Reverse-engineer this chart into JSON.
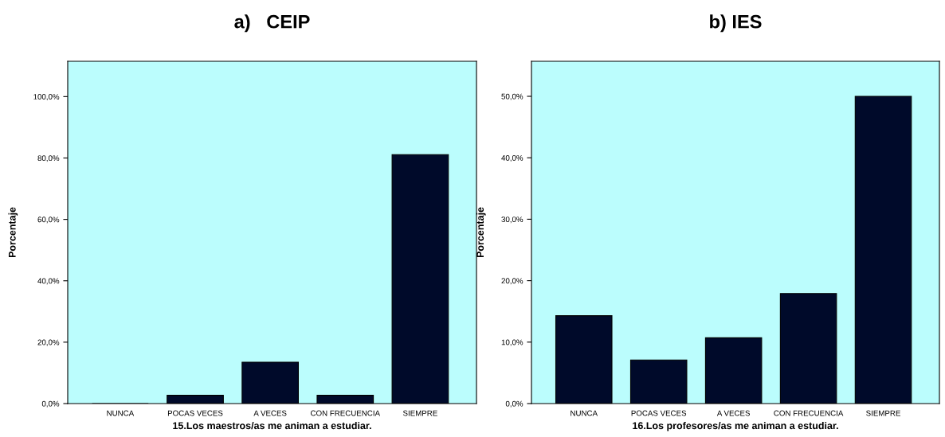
{
  "chart_data": [
    {
      "type": "bar",
      "title": "a)   CEIP",
      "xlabel": "15.Los maestros/as me animan a estudiar.",
      "ylabel": "Porcentaje",
      "categories": [
        "NUNCA",
        "POCAS VECES",
        "A VECES",
        "CON FRECUENCIA",
        "SIEMPRE"
      ],
      "values": [
        0,
        2.7,
        13.5,
        2.7,
        81.1
      ],
      "color": "#000a2a",
      "ylim": [
        0,
        111.5
      ],
      "yticks": [
        {
          "value": 0,
          "label": "0,0%"
        },
        {
          "value": 20,
          "label": "20,0%"
        },
        {
          "value": 40,
          "label": "40,0%"
        },
        {
          "value": 60,
          "label": "60,0%"
        },
        {
          "value": 80,
          "label": "80,0%"
        },
        {
          "value": 100,
          "label": "100,0%"
        }
      ],
      "grid": false
    },
    {
      "type": "bar",
      "title": "b) IES",
      "xlabel": "16.Los profesores/as me animan a estudiar.",
      "ylabel": "Porcentaje",
      "categories": [
        "NUNCA",
        "POCAS VECES",
        "A VECES",
        "CON FRECUENCIA",
        "SIEMPRE"
      ],
      "values": [
        14.3,
        7.1,
        10.7,
        17.9,
        50.0
      ],
      "color": "#000a2a",
      "ylim": [
        0,
        55.7
      ],
      "yticks": [
        {
          "value": 0,
          "label": "0,0%"
        },
        {
          "value": 10,
          "label": "10,0%"
        },
        {
          "value": 20,
          "label": "20,0%"
        },
        {
          "value": 30,
          "label": "30,0%"
        },
        {
          "value": 40,
          "label": "40,0%"
        },
        {
          "value": 50,
          "label": "50,0%"
        }
      ],
      "grid": false
    }
  ]
}
